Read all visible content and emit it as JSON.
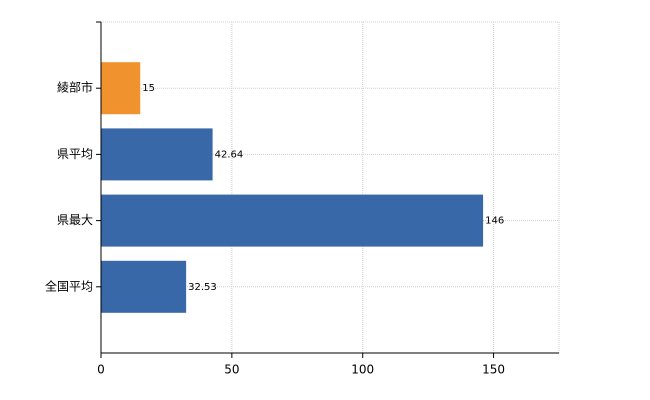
{
  "chart_data": {
    "type": "barh",
    "categories": [
      "綾部市",
      "県平均",
      "県最大",
      "全国平均"
    ],
    "values": [
      15,
      42.64,
      146,
      32.53
    ],
    "colors": [
      "#f0922e",
      "#3868a8",
      "#3868a8",
      "#3868a8"
    ],
    "xlim": [
      0,
      175
    ],
    "xticks": [
      0,
      50,
      100,
      150
    ],
    "grid": true
  }
}
